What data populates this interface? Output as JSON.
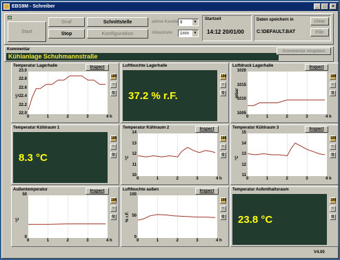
{
  "window": {
    "title": "EBS9M - Schreiber",
    "controls": [
      "_",
      "□",
      "×"
    ]
  },
  "toolbar": {
    "start": "Start",
    "stop": "Stop",
    "graf": "Graf",
    "schnittstelle": "Schnittstelle",
    "konfiguration": "Konfiguration",
    "aktive_kanaele_label": "aktive Kanäle",
    "aktive_kanaele_value": "9",
    "abtastrate_label": "Abtastrate",
    "abtastrate_value": "1min",
    "startzeit_label": "Startzeit",
    "startzeit_value": "14:12 20/01/00",
    "daten_label": "Daten speichern in",
    "clear": "clear",
    "file_value": "C:\\DEFAULT.BAT",
    "file_btn": "File"
  },
  "comment": {
    "label": "Kommentar",
    "value": "Kühlanlage Schuhmannstraße",
    "button": "Kommentar eingeben"
  },
  "inspect_label": "Inspect",
  "side_buttons": {
    "count": "188",
    "graph": "~",
    "zoom": "Q"
  },
  "panels": [
    {
      "title": "Temperatur Lagerhalle",
      "kind": "graph",
      "unit": "°C",
      "yticks": [
        "23.0",
        "22.8",
        "22.6",
        "22.4",
        "22.2",
        "22.0"
      ],
      "xticks": [
        "0",
        "1",
        "2",
        "3",
        "4 h"
      ]
    },
    {
      "title": "Luftfeuchte Lagerhalle",
      "kind": "digital",
      "value": "37.2 % r.F."
    },
    {
      "title": "Luftdruck Lagerhalle",
      "kind": "graph",
      "unit": "mbar",
      "yticks": [
        "1020",
        "1015",
        "1010",
        "1005"
      ],
      "xticks": [
        "0",
        "1",
        "2",
        "3",
        "4 h"
      ]
    },
    {
      "title": "Temperatur Kühlraum 1",
      "kind": "digital",
      "value": "8.3 °C"
    },
    {
      "title": "Temperatur Kühlraum 2",
      "kind": "graph",
      "unit": "°C",
      "yticks": [
        "14",
        "13",
        "12",
        "11",
        "10"
      ],
      "xticks": [
        "0",
        "1",
        "2",
        "3",
        "4 h"
      ]
    },
    {
      "title": "Temperatur Kühlraum 3",
      "kind": "graph",
      "unit": "°C",
      "yticks": [
        "15",
        "14",
        "13",
        "12",
        "11"
      ],
      "xticks": [
        "0",
        "1",
        "2",
        "3",
        "4 h"
      ]
    },
    {
      "title": "Außentemperatur",
      "kind": "graph",
      "unit": "°C",
      "yticks": [
        "50",
        "0"
      ],
      "xticks": [
        "0",
        "1",
        "2",
        "3",
        "4 h"
      ]
    },
    {
      "title": "Luftfeuchte außen",
      "kind": "graph",
      "unit": "% r.F.",
      "yticks": [
        "100",
        "50",
        "0"
      ],
      "xticks": [
        "0",
        "1",
        "2",
        "3",
        "4 h"
      ]
    },
    {
      "title": "Temperatur Aufenthaltsraum",
      "kind": "digital",
      "value": "23.8 °C"
    }
  ],
  "chart_data": [
    {
      "type": "line",
      "title": "Temperatur Lagerhalle",
      "ylabel": "°C",
      "ylim": [
        22.0,
        23.0
      ],
      "xlim": [
        0,
        4
      ],
      "series": [
        {
          "x": [
            0,
            0.2,
            0.4,
            0.6,
            0.9,
            1.2,
            1.5,
            1.8,
            2.1,
            2.4,
            2.7,
            3.0,
            3.3,
            3.6,
            3.9
          ],
          "y": [
            22.1,
            22.4,
            22.6,
            22.6,
            22.7,
            22.7,
            22.8,
            22.8,
            22.9,
            22.9,
            22.9,
            22.8,
            22.8,
            22.7,
            22.7
          ]
        }
      ]
    },
    {
      "type": "line",
      "title": "Luftdruck Lagerhalle",
      "ylabel": "mbar",
      "ylim": [
        1005,
        1020
      ],
      "xlim": [
        0,
        4
      ],
      "series": [
        {
          "x": [
            0,
            0.3,
            0.6,
            1.0,
            1.5,
            2.0,
            2.5,
            3.0,
            3.5,
            3.9
          ],
          "y": [
            1008,
            1008,
            1009,
            1009,
            1009,
            1010,
            1010,
            1010,
            1010,
            1010
          ]
        }
      ]
    },
    {
      "type": "line",
      "title": "Temperatur Kühlraum 2",
      "ylabel": "°C",
      "ylim": [
        10,
        14
      ],
      "xlim": [
        0,
        4
      ],
      "series": [
        {
          "x": [
            0,
            0.4,
            0.8,
            1.2,
            1.6,
            2.0,
            2.2,
            2.5,
            2.8,
            3.1,
            3.4,
            3.7,
            3.9
          ],
          "y": [
            11.9,
            11.8,
            11.9,
            11.8,
            11.9,
            11.8,
            12.3,
            12.7,
            12.4,
            12.2,
            12.4,
            12.3,
            12.2
          ]
        }
      ]
    },
    {
      "type": "line",
      "title": "Temperatur Kühlraum 3",
      "ylabel": "°C",
      "ylim": [
        11,
        15
      ],
      "xlim": [
        0,
        4
      ],
      "series": [
        {
          "x": [
            0,
            0.4,
            0.8,
            1.2,
            1.6,
            2.0,
            2.2,
            2.4,
            2.7,
            3.0,
            3.3,
            3.6,
            3.9
          ],
          "y": [
            13.1,
            13.0,
            13.1,
            13.0,
            13.0,
            12.9,
            13.6,
            14.1,
            13.8,
            13.5,
            13.3,
            13.1,
            13.0
          ]
        }
      ]
    },
    {
      "type": "line",
      "title": "Außentemperatur",
      "ylabel": "°C",
      "ylim": [
        -20,
        80
      ],
      "xlim": [
        0,
        4
      ],
      "series": [
        {
          "x": [
            0,
            1,
            2,
            3,
            3.9
          ],
          "y": [
            12,
            12,
            13,
            13,
            13
          ]
        }
      ]
    },
    {
      "type": "line",
      "title": "Luftfeuchte außen",
      "ylabel": "% r.F.",
      "ylim": [
        0,
        100
      ],
      "xlim": [
        0,
        4
      ],
      "series": [
        {
          "x": [
            0,
            0.3,
            0.6,
            1.0,
            1.4,
            1.8,
            2.2,
            2.6,
            3.0,
            3.4,
            3.9
          ],
          "y": [
            42,
            45,
            52,
            55,
            54,
            52,
            51,
            50,
            49,
            49,
            48
          ]
        }
      ]
    }
  ],
  "status": {
    "version": "V4.00"
  },
  "colors": {
    "digital_bg": "#223b2f",
    "digital_fg": "#ffff10",
    "line": "#a0342a",
    "titlebar": "#0a2a6b"
  }
}
